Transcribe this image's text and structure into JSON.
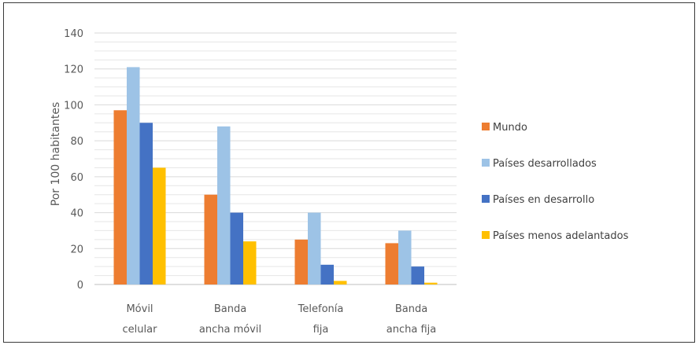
{
  "chart_data": {
    "type": "bar",
    "title": "",
    "xlabel": "",
    "ylabel": "Por 100 habitantes",
    "ylim": [
      0,
      140
    ],
    "yticks": [
      0,
      20,
      40,
      60,
      80,
      100,
      120,
      140
    ],
    "grid": true,
    "legend_position": "right",
    "categories": [
      [
        "Móvil",
        "celular"
      ],
      [
        "Banda",
        "ancha móvil"
      ],
      [
        "Telefonía",
        "fija"
      ],
      [
        "Banda",
        "ancha fija"
      ]
    ],
    "series": [
      {
        "name": "Mundo",
        "color": "#ED7D31",
        "values": [
          97,
          50,
          25,
          23
        ]
      },
      {
        "name": "Países desarrollados",
        "color": "#9DC3E6",
        "values": [
          121,
          88,
          40,
          30
        ]
      },
      {
        "name": "Países en desarrollo",
        "color": "#4472C4",
        "values": [
          90,
          40,
          11,
          10
        ]
      },
      {
        "name": "Países menos adelantados",
        "color": "#FFC000",
        "values": [
          65,
          24,
          2,
          1
        ]
      }
    ]
  }
}
